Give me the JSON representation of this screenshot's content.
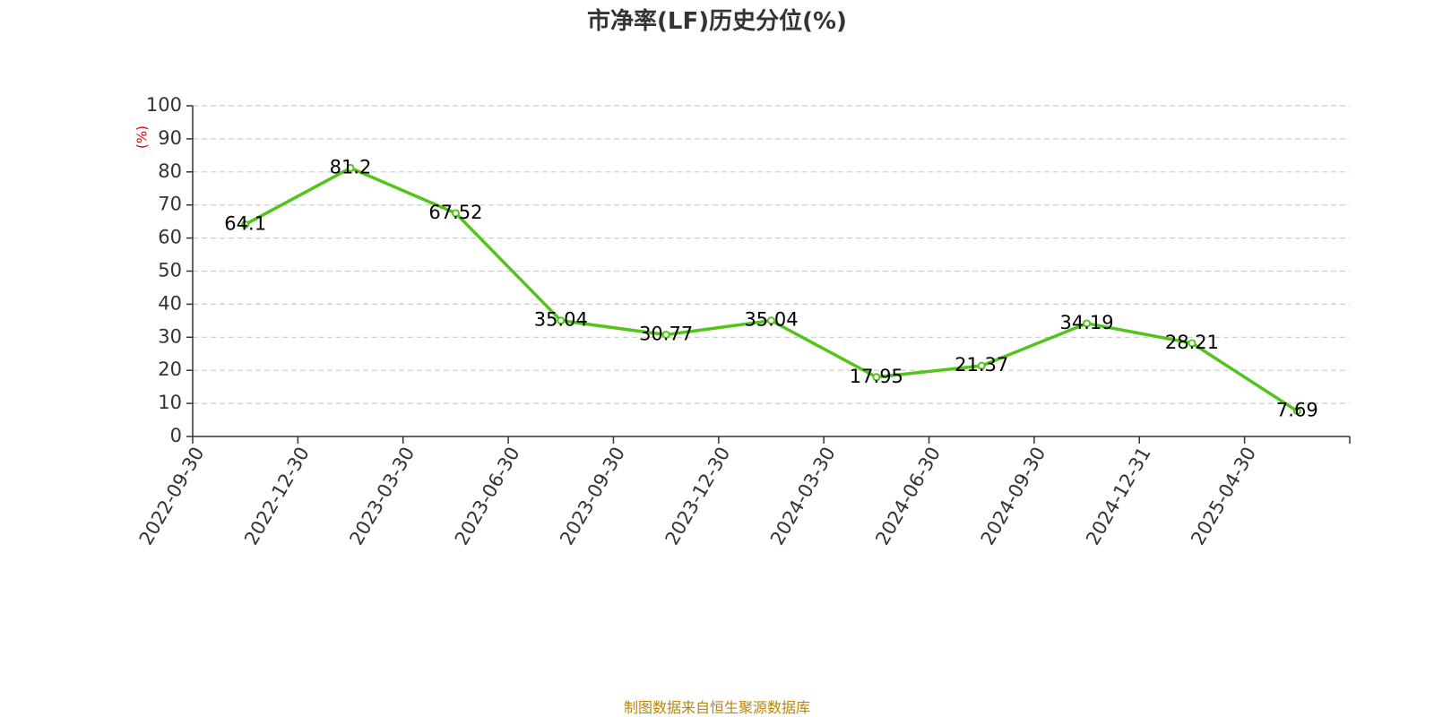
{
  "title": "市净率(LF)历史分位(%)",
  "source": "制图数据来自恒生聚源数据库",
  "chart_data": {
    "type": "line",
    "title": "市净率(LF)历史分位(%)",
    "ylabel": "(%)",
    "xlabel": "",
    "categories": [
      "2022-09-30",
      "2022-12-30",
      "2023-03-30",
      "2023-06-30",
      "2023-09-30",
      "2023-12-30",
      "2024-03-30",
      "2024-06-30",
      "2024-09-30",
      "2024-12-31",
      "2025-04-30"
    ],
    "series": [
      {
        "values": [
          64.1,
          81.2,
          67.52,
          35.04,
          30.77,
          35.04,
          17.95,
          21.37,
          34.19,
          28.21,
          7.69
        ],
        "color": "#52c41a"
      }
    ],
    "data_labels": [
      "64.1",
      "81.2",
      "67.52",
      "35.04",
      "30.77",
      "35.04",
      "17.95",
      "21.37",
      "34.19",
      "28.21",
      "7.69"
    ],
    "ylim": [
      0,
      100
    ],
    "yticks": [
      0,
      10,
      20,
      30,
      40,
      50,
      60,
      70,
      80,
      90,
      100
    ],
    "ytick_labels": [
      "0",
      "10",
      "20",
      "30",
      "40",
      "50",
      "60",
      "70",
      "80",
      "90",
      "100"
    ],
    "grid": "horizontal-dashed",
    "legend": "none",
    "colors": {
      "line": "#52c41a",
      "grid": "#cccccc",
      "axis": "#333333",
      "unit": "#e00000",
      "source": "#b8860b"
    }
  }
}
